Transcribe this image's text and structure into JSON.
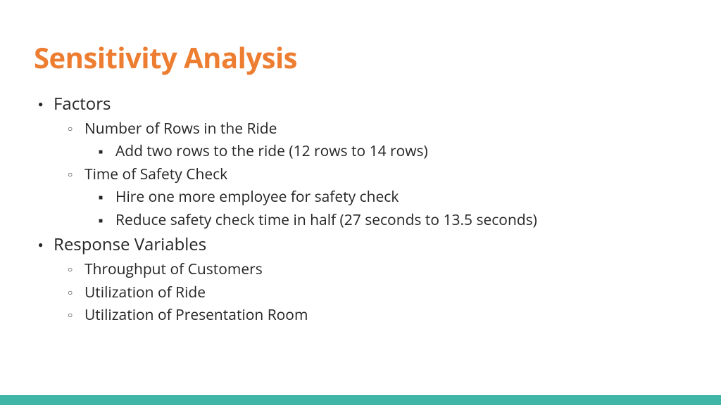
{
  "colors": {
    "title": "#ed7d31",
    "text": "#252525",
    "footer_bar": "#3eb5a5",
    "background": "#ffffff"
  },
  "title": "Sensitivity Analysis",
  "bullets": {
    "l1_0": "Factors",
    "l1_0_l2_0": "Number of Rows in the Ride",
    "l1_0_l2_0_l3_0": "Add two rows to the ride (12 rows to 14 rows)",
    "l1_0_l2_1": "Time of Safety Check",
    "l1_0_l2_1_l3_0": "Hire one more employee for safety check",
    "l1_0_l2_1_l3_1": "Reduce safety check time in half (27 seconds to 13.5 seconds)",
    "l1_1": "Response Variables",
    "l1_1_l2_0": "Throughput of Customers",
    "l1_1_l2_1": "Utilization of Ride",
    "l1_1_l2_2": "Utilization of Presentation Room"
  }
}
